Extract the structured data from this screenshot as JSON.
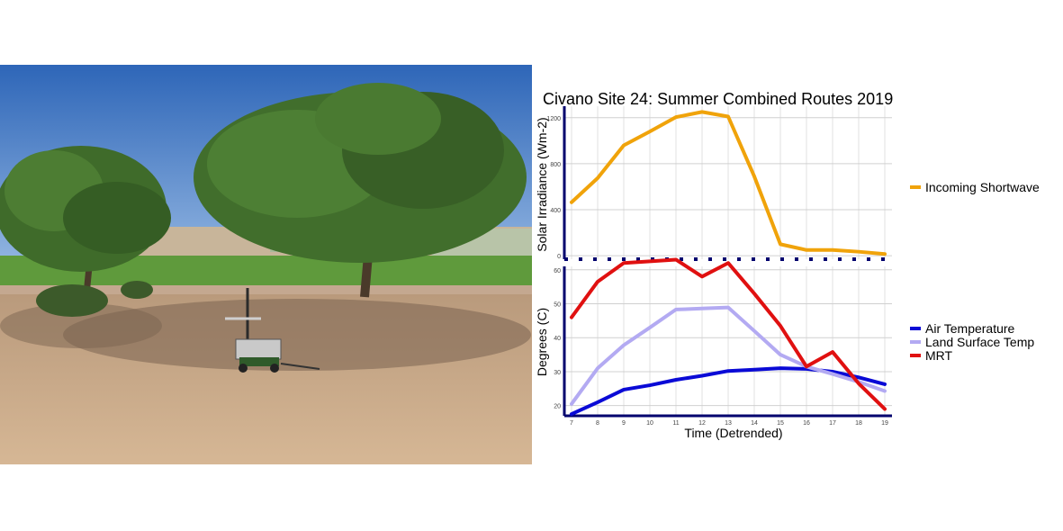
{
  "photo": {
    "description_icon": "photo-icon"
  },
  "chart_data": [
    {
      "type": "line",
      "title": "Civano Site 24: Summer Combined Routes 2019",
      "xlabel": "",
      "ylabel": "Solar Irradiance (Wm-2)",
      "x": [
        7,
        8,
        9,
        10,
        11,
        12,
        13,
        14,
        15,
        16,
        17,
        18,
        19
      ],
      "ylim": [
        -30,
        1300
      ],
      "yticks": [
        0,
        400,
        800,
        1200
      ],
      "xlim": [
        7,
        19
      ],
      "grid": true,
      "legend_position": "right",
      "series": [
        {
          "name": "Incoming Shortwave",
          "color": "#f0a30a",
          "values": [
            465,
            675,
            960,
            1080,
            1205,
            1250,
            1210,
            690,
            100,
            50,
            50,
            35,
            15
          ]
        }
      ]
    },
    {
      "type": "line",
      "title": "",
      "xlabel": "Time (Detrended)",
      "ylabel": "Degrees (C)",
      "x": [
        7,
        8,
        9,
        10,
        11,
        12,
        13,
        14,
        15,
        16,
        17,
        18,
        19
      ],
      "xticks": [
        "7",
        "8",
        "9",
        "10",
        "11",
        "12",
        "13",
        "14",
        "15",
        "16",
        "17",
        "18",
        "19"
      ],
      "ylim": [
        17,
        61
      ],
      "yticks": [
        20,
        30,
        40,
        50,
        60
      ],
      "xlim": [
        7,
        19
      ],
      "grid": true,
      "legend_position": "right",
      "series": [
        {
          "name": "Air Temperature",
          "color": "#0a0ad6",
          "values": [
            17.5,
            21,
            24.7,
            26,
            27.6,
            28.8,
            30.2,
            30.6,
            31,
            30.8,
            30,
            28.3,
            26.3
          ]
        },
        {
          "name": "Land Surface Temp",
          "color": "#b3aaf2",
          "values": [
            20.5,
            31,
            37.8,
            43,
            48.3,
            48.6,
            48.9,
            42,
            35,
            31.5,
            29.3,
            27,
            24.3
          ]
        },
        {
          "name": "MRT",
          "color": "#e01010",
          "values": [
            46,
            56.5,
            62,
            62.5,
            63,
            58,
            62,
            53,
            43.5,
            31.5,
            35.8,
            26.5,
            19
          ]
        }
      ]
    }
  ]
}
